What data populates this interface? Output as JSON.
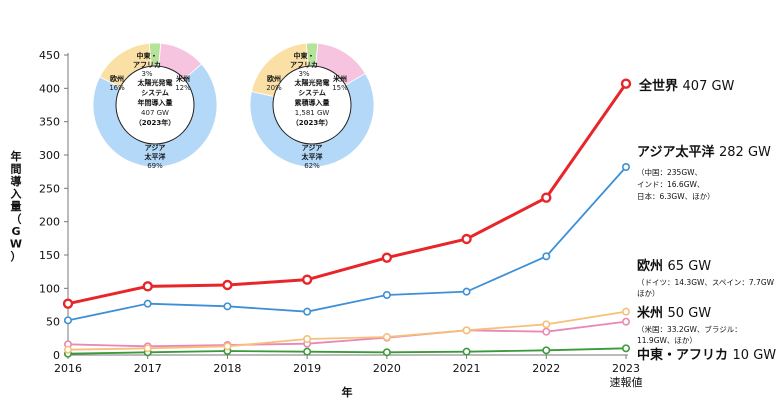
{
  "chart_data": {
    "type": "line",
    "x": [
      "2016",
      "2017",
      "2018",
      "2019",
      "2020",
      "2021",
      "2022",
      "2023"
    ],
    "x_note": "速報値",
    "xlabel": "年",
    "ylabel": "年間導入量（GW）",
    "ylim": [
      0,
      450
    ],
    "yticks": [
      0,
      50,
      100,
      150,
      200,
      250,
      300,
      350,
      400,
      450
    ],
    "grid": false,
    "series": [
      {
        "name": "全世界",
        "color": "#e8262a",
        "values": [
          77,
          103,
          105,
          113,
          146,
          174,
          236,
          407
        ]
      },
      {
        "name": "アジア太平洋",
        "color": "#3e8fd6",
        "values": [
          52,
          77,
          73,
          65,
          90,
          95,
          148,
          282
        ]
      },
      {
        "name": "欧州",
        "color": "#f5c17a",
        "values": [
          8,
          10,
          13,
          24,
          27,
          37,
          46,
          65
        ]
      },
      {
        "name": "米州",
        "color": "#ea87b8",
        "values": [
          16,
          13,
          15,
          17,
          26,
          37,
          35,
          50
        ]
      },
      {
        "name": "中東・アフリカ",
        "color": "#3a9a3a",
        "values": [
          2,
          4,
          6,
          5,
          4,
          5,
          7,
          10
        ]
      }
    ]
  },
  "labels": {
    "world": {
      "name": "全世界",
      "value": "407 GW"
    },
    "asia": {
      "name": "アジア太平洋",
      "value": "282 GW",
      "detail": [
        "（中国：235GW、",
        "インド：16.6GW、",
        "日本：6.3GW、ほか）"
      ]
    },
    "europe": {
      "name": "欧州",
      "value": "65 GW",
      "detail": [
        "（ドイツ：14.3GW、スペイン：7.7GW",
        "ほか）"
      ]
    },
    "americas": {
      "name": "米州",
      "value": "50 GW",
      "detail": [
        "（米国：33.2GW、ブラジル：",
        "11.9GW、ほか）"
      ]
    },
    "mea": {
      "name": "中東・アフリカ",
      "value": "10 GW"
    }
  },
  "pies": [
    {
      "center": [
        "太陽光発電",
        "システム",
        "年間導入量",
        "407 GW",
        "（2023年）"
      ],
      "slices": [
        {
          "name": "アジア太平洋",
          "pct": 69,
          "color": "#b4d8f7",
          "label": [
            "アジア",
            "太平洋",
            "69%"
          ]
        },
        {
          "name": "欧州",
          "pct": 16,
          "color": "#fbe0a6",
          "label": [
            "欧州",
            "16%"
          ]
        },
        {
          "name": "中東・アフリカ",
          "pct": 3,
          "color": "#b6e39a",
          "label": [
            "中東・",
            "アフリカ",
            "3%"
          ]
        },
        {
          "name": "米州",
          "pct": 12,
          "color": "#f6c4df",
          "label": [
            "米州",
            "12%"
          ]
        }
      ]
    },
    {
      "center": [
        "太陽光発電",
        "システム",
        "累積導入量",
        "1,581 GW",
        "（2023年）"
      ],
      "slices": [
        {
          "name": "アジア太平洋",
          "pct": 62,
          "color": "#b4d8f7",
          "label": [
            "アジア",
            "太平洋",
            "62%"
          ]
        },
        {
          "name": "欧州",
          "pct": 20,
          "color": "#fbe0a6",
          "label": [
            "欧州",
            "20%"
          ]
        },
        {
          "name": "中東・アフリカ",
          "pct": 3,
          "color": "#b6e39a",
          "label": [
            "中東・",
            "アフリカ",
            "3%"
          ]
        },
        {
          "name": "米州",
          "pct": 15,
          "color": "#f6c4df",
          "label": [
            "米州",
            "15%"
          ]
        }
      ]
    }
  ]
}
